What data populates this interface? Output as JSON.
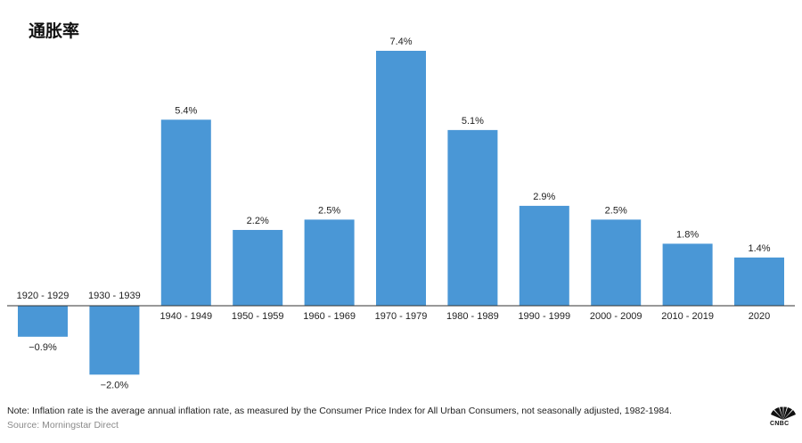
{
  "title": "通胀率",
  "note": "Note: Inflation rate is the average annual inflation rate, as measured by the Consumer Price Index for All Urban Consumers, not seasonally adjusted, 1982-1984.",
  "source": "Source: Morningstar Direct",
  "logo": {
    "text": "CNBC",
    "icon": "cnbc-peacock-icon"
  },
  "chart_data": {
    "type": "bar",
    "title": "通胀率",
    "xlabel": "",
    "ylabel": "",
    "categories": [
      "1920 - 1929",
      "1930 - 1939",
      "1940 - 1949",
      "1950 - 1959",
      "1960 - 1969",
      "1970 - 1979",
      "1980 - 1989",
      "1990 - 1999",
      "2000 - 2009",
      "2010 - 2019",
      "2020"
    ],
    "values": [
      -0.9,
      -2.0,
      5.4,
      2.2,
      2.5,
      7.4,
      5.1,
      2.9,
      2.5,
      1.8,
      1.4
    ],
    "value_labels": [
      "−0.9%",
      "−2.0%",
      "5.4%",
      "2.2%",
      "2.5%",
      "7.4%",
      "5.1%",
      "2.9%",
      "2.5%",
      "1.8%",
      "1.4%"
    ],
    "bar_color": "#4a97d6",
    "ylim": [
      -2.0,
      7.4
    ],
    "grid": false,
    "legend": "none"
  }
}
